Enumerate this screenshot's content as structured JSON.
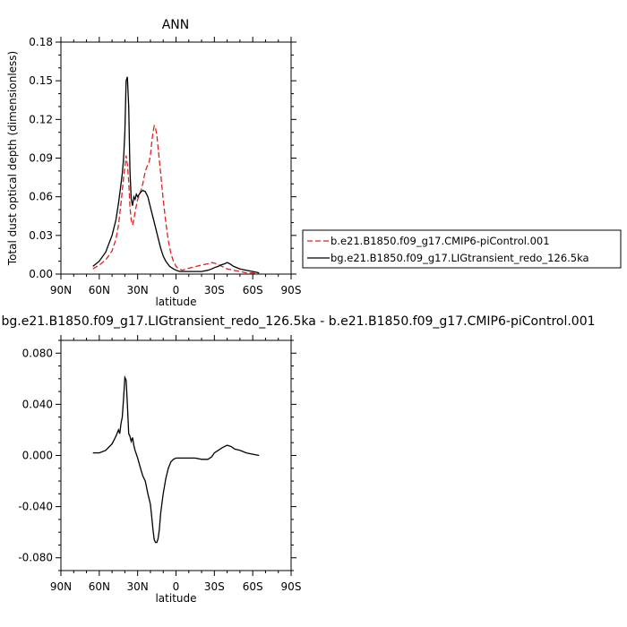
{
  "chart_data": [
    {
      "type": "line",
      "title": "ANN",
      "xlabel": "latitude",
      "ylabel": "Total dust optical depth (dimensionless)",
      "xlim": [
        90,
        -90
      ],
      "ylim": [
        0,
        0.18
      ],
      "xticks": [
        90,
        60,
        30,
        0,
        -30,
        -60,
        -90
      ],
      "xtick_labels": [
        "90N",
        "60N",
        "30N",
        "0",
        "30S",
        "60S",
        "90S"
      ],
      "yticks": [
        0,
        0.03,
        0.06,
        0.09,
        0.12,
        0.15,
        0.18
      ],
      "ytick_labels": [
        "0.00",
        "0.03",
        "0.06",
        "0.09",
        "0.12",
        "0.15",
        "0.18"
      ],
      "series": [
        {
          "name": "b.e21.B1850.f09_g17.CMIP6-piControl.001",
          "color": "#e02020",
          "dash": "dashed",
          "x": [
            65,
            60,
            55,
            50,
            47,
            45,
            43,
            41,
            40,
            39,
            38,
            37,
            36,
            35,
            34,
            33,
            32,
            30,
            28,
            26,
            24,
            22,
            21,
            20,
            19,
            18,
            17,
            16,
            15,
            14,
            12,
            10,
            8,
            6,
            4,
            2,
            0,
            -2,
            -5,
            -8,
            -12,
            -16,
            -20,
            -25,
            -28,
            -32,
            -36,
            -40,
            -45,
            -50,
            -55,
            -60,
            -65
          ],
          "values": [
            0.004,
            0.007,
            0.011,
            0.018,
            0.027,
            0.038,
            0.055,
            0.075,
            0.083,
            0.092,
            0.085,
            0.072,
            0.052,
            0.042,
            0.038,
            0.042,
            0.048,
            0.058,
            0.063,
            0.07,
            0.08,
            0.085,
            0.087,
            0.092,
            0.102,
            0.11,
            0.115,
            0.113,
            0.108,
            0.098,
            0.078,
            0.058,
            0.04,
            0.026,
            0.016,
            0.01,
            0.006,
            0.004,
            0.003,
            0.004,
            0.005,
            0.006,
            0.007,
            0.008,
            0.009,
            0.008,
            0.006,
            0.004,
            0.003,
            0.002,
            0.001,
            0.001,
            0.0
          ]
        },
        {
          "name": "bg.e21.B1850.f09_g17.LIGtransient_redo_126.5ka",
          "color": "#000000",
          "dash": "solid",
          "x": [
            65,
            60,
            55,
            50,
            47,
            45,
            43,
            42,
            41,
            40,
            39,
            38,
            37,
            36,
            35,
            34,
            33,
            32,
            31,
            30,
            28,
            26,
            24,
            22,
            20,
            18,
            16,
            14,
            12,
            10,
            8,
            5,
            2,
            0,
            -3,
            -6,
            -10,
            -15,
            -20,
            -25,
            -28,
            -30,
            -33,
            -35,
            -38,
            -40,
            -42,
            -45,
            -50,
            -55,
            -60,
            -65
          ],
          "values": [
            0.006,
            0.01,
            0.017,
            0.03,
            0.042,
            0.055,
            0.07,
            0.078,
            0.09,
            0.11,
            0.15,
            0.153,
            0.13,
            0.08,
            0.058,
            0.053,
            0.06,
            0.058,
            0.062,
            0.06,
            0.063,
            0.065,
            0.064,
            0.06,
            0.052,
            0.044,
            0.036,
            0.028,
            0.02,
            0.014,
            0.01,
            0.006,
            0.004,
            0.003,
            0.002,
            0.002,
            0.002,
            0.002,
            0.002,
            0.003,
            0.004,
            0.005,
            0.006,
            0.007,
            0.008,
            0.009,
            0.008,
            0.006,
            0.004,
            0.003,
            0.002,
            0.001
          ]
        }
      ],
      "legend": "right"
    },
    {
      "type": "line",
      "title": "bg.e21.B1850.f09_g17.LIGtransient_redo_126.5ka  -  b.e21.B1850.f09_g17.CMIP6-piControl.001",
      "xlabel": "latitude",
      "ylabel": "",
      "xlim": [
        90,
        -90
      ],
      "ylim": [
        -0.09,
        0.09
      ],
      "xticks": [
        90,
        60,
        30,
        0,
        -30,
        -60,
        -90
      ],
      "xtick_labels": [
        "90N",
        "60N",
        "30N",
        "0",
        "30S",
        "60S",
        "90S"
      ],
      "yticks": [
        -0.08,
        -0.04,
        0,
        0.04,
        0.08
      ],
      "ytick_labels": [
        "-0.080",
        "-0.040",
        "0.000",
        "0.040",
        "0.080"
      ],
      "series": [
        {
          "color": "#000000",
          "dash": "solid",
          "x": [
            65,
            60,
            55,
            50,
            47,
            45,
            44,
            43,
            42,
            41,
            40,
            39,
            38,
            37,
            36,
            35,
            34,
            33,
            32,
            30,
            28,
            26,
            24,
            22,
            20,
            19,
            18,
            17,
            16,
            15,
            14,
            13,
            12,
            10,
            8,
            6,
            4,
            2,
            0,
            -5,
            -10,
            -15,
            -20,
            -25,
            -28,
            -30,
            -33,
            -36,
            -40,
            -43,
            -46,
            -50,
            -55,
            -60,
            -65
          ],
          "values": [
            0.002,
            0.002,
            0.004,
            0.009,
            0.015,
            0.02,
            0.017,
            0.025,
            0.03,
            0.045,
            0.061,
            0.059,
            0.04,
            0.017,
            0.015,
            0.011,
            0.014,
            0.008,
            0.004,
            -0.002,
            -0.009,
            -0.016,
            -0.02,
            -0.03,
            -0.038,
            -0.048,
            -0.058,
            -0.066,
            -0.068,
            -0.068,
            -0.065,
            -0.058,
            -0.045,
            -0.03,
            -0.018,
            -0.01,
            -0.005,
            -0.003,
            -0.002,
            -0.002,
            -0.002,
            -0.002,
            -0.003,
            -0.003,
            -0.001,
            0.002,
            0.004,
            0.006,
            0.008,
            0.007,
            0.005,
            0.004,
            0.002,
            0.001,
            0.0
          ]
        }
      ]
    }
  ]
}
